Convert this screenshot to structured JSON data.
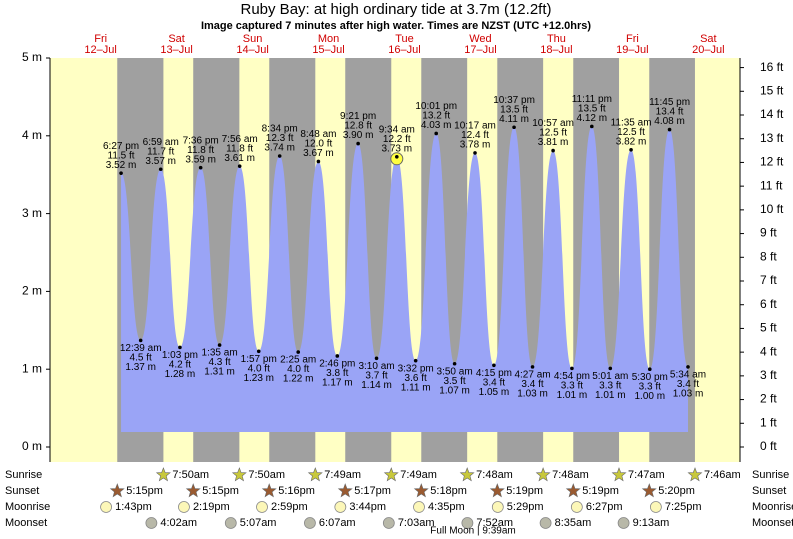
{
  "chart_data": {
    "type": "tide",
    "title": "Ruby Bay: at high  ordinary tide at 3.7m (12.2ft)",
    "subtitle": "Image captured 7 minutes after high water. Times are NZST (UTC +12.0hrs)",
    "xlim": [
      -4,
      214
    ],
    "xticks": [
      {
        "value": 12,
        "label": "Fri"
      },
      {
        "value": 36,
        "label": "Sat"
      },
      {
        "value": 60,
        "label": "Sun"
      },
      {
        "value": 84,
        "label": "Mon"
      },
      {
        "value": 108,
        "label": "Tue"
      },
      {
        "value": 132,
        "label": "Wed"
      },
      {
        "value": 156,
        "label": "Thu"
      },
      {
        "value": 180,
        "label": "Fri"
      },
      {
        "value": 204,
        "label": "Sat"
      }
    ],
    "xtick_dates": [
      "12–Jul",
      "13–Jul",
      "14–Jul",
      "15–Jul",
      "16–Jul",
      "17–Jul",
      "18–Jul",
      "19–Jul",
      "20–Jul"
    ],
    "ylim": [
      0,
      5
    ],
    "yticks": [
      {
        "value": 0,
        "label": "0 m"
      },
      {
        "value": 1,
        "label": "1 m"
      },
      {
        "value": 2,
        "label": "2 m"
      },
      {
        "value": 3,
        "label": "3 m"
      },
      {
        "value": 4,
        "label": "4 m"
      },
      {
        "value": 5,
        "label": "5 m"
      }
    ],
    "y2lim": [
      0,
      16.404
    ],
    "y2ticks": [
      {
        "value": 0,
        "label": "0 ft"
      },
      {
        "value": 1,
        "label": "1 ft"
      },
      {
        "value": 2,
        "label": "2 ft"
      },
      {
        "value": 3,
        "label": "3 ft"
      },
      {
        "value": 4,
        "label": "4 ft"
      },
      {
        "value": 5,
        "label": "5 ft"
      },
      {
        "value": 6,
        "label": "6 ft"
      },
      {
        "value": 7,
        "label": "7 ft"
      },
      {
        "value": 8,
        "label": "8 ft"
      },
      {
        "value": 9,
        "label": "9 ft"
      },
      {
        "value": 10,
        "label": "10 ft"
      },
      {
        "value": 11,
        "label": "11 ft"
      },
      {
        "value": 12,
        "label": "12 ft"
      },
      {
        "value": 13,
        "label": "13 ft"
      },
      {
        "value": 14,
        "label": "14 ft"
      },
      {
        "value": 15,
        "label": "15 ft"
      },
      {
        "value": 16,
        "label": "16 ft"
      }
    ],
    "series": [
      {
        "color": "#9aa4f6",
        "x": [
          18.45,
          24.65,
          30.98,
          37.05,
          43.6,
          49.58,
          55.93,
          61.95,
          68.57,
          74.42,
          80.8,
          86.77,
          93.35,
          99.17,
          105.57,
          111.53,
          118.02,
          123.83,
          130.28,
          136.25,
          142.62,
          148.45,
          154.95,
          160.9,
          167.18,
          173.02,
          179.58,
          185.5,
          191.75,
          197.57
        ],
        "values": [
          3.52,
          1.37,
          3.57,
          1.28,
          3.59,
          1.31,
          3.61,
          1.23,
          3.74,
          1.22,
          3.67,
          1.17,
          3.9,
          1.14,
          3.73,
          1.11,
          4.03,
          1.07,
          3.78,
          1.05,
          4.11,
          1.03,
          3.81,
          1.01,
          4.12,
          1.01,
          3.82,
          1.0,
          4.08,
          1.03
        ],
        "value_labels": [
          "3.52 m",
          "1.37 m",
          "3.57 m",
          "1.28 m",
          "3.59 m",
          "1.31 m",
          "3.61 m",
          "1.23 m",
          "3.74 m",
          "1.22 m",
          "3.67 m",
          "1.17 m",
          "3.90 m",
          "1.14 m",
          "3.73 m",
          "1.11 m",
          "4.03 m",
          "1.07 m",
          "3.78 m",
          "1.05 m",
          "4.11 m",
          "1.03 m",
          "3.81 m",
          "1.01 m",
          "4.12 m",
          "1.01 m",
          "3.82 m",
          "1.00 m",
          "4.08 m",
          "1.03 m"
        ],
        "ft_labels": [
          "11.5 ft",
          "4.5 ft",
          "11.7 ft",
          "4.2 ft",
          "11.8 ft",
          "4.3 ft",
          "11.8 ft",
          "4.0 ft",
          "12.3 ft",
          "4.0 ft",
          "12.0 ft",
          "3.8 ft",
          "12.8 ft",
          "3.7 ft",
          "12.2 ft",
          "3.6 ft",
          "13.2 ft",
          "3.5 ft",
          "12.4 ft",
          "3.4 ft",
          "13.5 ft",
          "3.4 ft",
          "12.5 ft",
          "3.3 ft",
          "13.5 ft",
          "3.3 ft",
          "12.5 ft",
          "3.3 ft",
          "13.4 ft",
          "3.4 ft"
        ],
        "time_labels": [
          "6:27 pm",
          "12:39 am",
          "6:59 am",
          "1:03 pm",
          "7:36 pm",
          "1:35 am",
          "7:56 am",
          "1:57 pm",
          "8:34 pm",
          "2:25 am",
          "8:48 am",
          "2:46 pm",
          "9:21 pm",
          "3:10 am",
          "9:34 am",
          "3:32 pm",
          "10:01 pm",
          "3:50 am",
          "10:17 am",
          "4:15 pm",
          "10:37 pm",
          "4:27 am",
          "10:57 am",
          "4:54 pm",
          "11:11 pm",
          "5:01 am",
          "11:35 am",
          "5:30 pm",
          "11:45 pm",
          "5:34 am"
        ]
      }
    ],
    "highlight": 14,
    "rows": [
      {
        "label": "Sunrise",
        "color": "#c8c83c",
        "x": [
          31.83,
          55.83,
          79.82,
          103.82,
          127.8,
          151.8,
          175.78,
          199.77
        ],
        "times": [
          "7:50am",
          "7:50am",
          "7:49am",
          "7:49am",
          "7:48am",
          "7:48am",
          "7:47am",
          "7:46am"
        ]
      },
      {
        "label": "Sunset",
        "color": "#9a5a30",
        "x": [
          17.25,
          41.25,
          65.27,
          89.28,
          113.3,
          137.32,
          161.32,
          185.33
        ],
        "times": [
          "5:15pm",
          "5:15pm",
          "5:16pm",
          "5:17pm",
          "5:18pm",
          "5:19pm",
          "5:19pm",
          "5:20pm"
        ]
      },
      {
        "label": "Moonrise",
        "color": "#fcf7b8",
        "x": [
          13.72,
          38.32,
          62.98,
          87.73,
          112.58,
          137.48,
          162.45,
          187.42
        ],
        "times": [
          "1:43pm",
          "2:19pm",
          "2:59pm",
          "3:44pm",
          "4:35pm",
          "5:29pm",
          "6:27pm",
          "7:25pm"
        ]
      },
      {
        "label": "Moonset",
        "color": "#b8b8a8",
        "x": [
          28.03,
          53.12,
          78.12,
          103.05,
          127.87,
          152.58,
          177.22
        ],
        "times": [
          "4:02am",
          "5:07am",
          "6:07am",
          "7:03am",
          "7:52am",
          "8:35am",
          "9:13am"
        ]
      }
    ],
    "moon_phase": {
      "label": "Full Moon | 9:39am",
      "x": 129.65
    }
  }
}
